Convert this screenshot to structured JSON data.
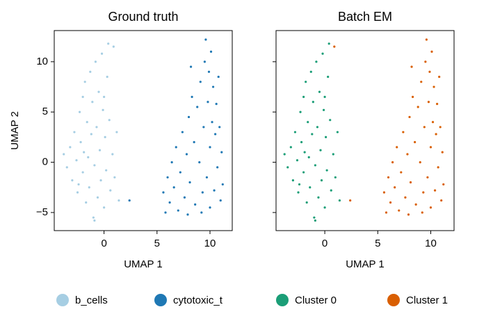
{
  "chart_data": [
    {
      "type": "scatter",
      "title": "Ground truth",
      "xlabel": "UMAP 1",
      "ylabel": "UMAP 2",
      "xlim": [
        -4.7,
        12.1
      ],
      "ylim": [
        -6.8,
        13.1
      ],
      "xticks": [
        0,
        5,
        10
      ],
      "yticks": [
        {
          "value": -5,
          "label": "−5"
        },
        0,
        5,
        10
      ],
      "ytick_labels": true,
      "legend": "bottom",
      "series": [
        {
          "name": "b_cells",
          "color": "#a6cee3",
          "x": [
            -3.8,
            -3.5,
            -3.2,
            -3,
            -2.8,
            -2.6,
            -2.5,
            -2.3,
            -2.2,
            -2,
            -2,
            -1.8,
            -1.7,
            -1.6,
            -1.5,
            -1.4,
            -1.3,
            -1.2,
            -1.1,
            -1,
            -0.9,
            -0.8,
            -0.7,
            -0.6,
            -0.5,
            -0.4,
            -0.3,
            -0.2,
            -0.1,
            0,
            0.1,
            0.2,
            0.3,
            0.4,
            0.5,
            0.6,
            0.8,
            0.9,
            1,
            1.2,
            1.4,
            -2.4,
            -1.9,
            -0.9,
            0
          ],
          "y": [
            0.8,
            -0.5,
            1.5,
            -1.8,
            3,
            0.2,
            -3,
            5,
            2,
            -1,
            6.5,
            8,
            -4,
            4,
            0.5,
            -2.5,
            9,
            2.8,
            6,
            -5.5,
            -0.3,
            10,
            3.5,
            -3.5,
            7,
            1.2,
            -1.8,
            10.8,
            5.2,
            -4.5,
            2.5,
            -0.8,
            8.5,
            11.8,
            4.2,
            -2.8,
            0.8,
            11.5,
            -1.5,
            3,
            -3.8,
            -2.2,
            1,
            -5.8,
            6.5
          ]
        },
        {
          "name": "cytotoxic_t",
          "color": "#1f78b4",
          "x": [
            5.6,
            5.8,
            6,
            6.2,
            6.4,
            6.6,
            6.8,
            7,
            7.2,
            7.4,
            7.6,
            7.8,
            8,
            8.1,
            8.3,
            8.5,
            8.6,
            8.8,
            9,
            9.1,
            9.3,
            9.4,
            9.5,
            9.6,
            9.7,
            9.8,
            9.9,
            10,
            10,
            10.1,
            10.2,
            10.3,
            10.4,
            10.5,
            10.6,
            10.7,
            10.8,
            10.9,
            11,
            11.1,
            11.2,
            8.2,
            7.9,
            9.2,
            2.4
          ],
          "y": [
            -3,
            -5,
            -1.5,
            -4,
            0,
            -2.5,
            1.5,
            -4.8,
            -1,
            3,
            -3.5,
            0.8,
            4.5,
            -2,
            6.5,
            2,
            -4.2,
            5.5,
            0,
            8,
            -3,
            3.5,
            10,
            12.2,
            -1.5,
            6,
            9,
            1.5,
            -4.5,
            11,
            4,
            7.5,
            -2.8,
            2.8,
            5.8,
            -0.5,
            8.5,
            3.5,
            -3.8,
            1,
            -2.2,
            9.5,
            -5.2,
            -5,
            -3.8
          ]
        }
      ]
    },
    {
      "type": "scatter",
      "title": "Batch EM",
      "xlabel": "UMAP 1",
      "xlim": [
        -4.6,
        12.2
      ],
      "ylim": [
        -6.8,
        13.1
      ],
      "xticks": [
        0,
        5,
        10
      ],
      "yticks": [
        -5,
        0,
        5,
        10
      ],
      "ytick_labels": false,
      "legend": "bottom",
      "series": [
        {
          "name": "Cluster 0",
          "color": "#1b9e77",
          "x": [
            -3.8,
            -3.5,
            -3.2,
            -3,
            -2.8,
            -2.6,
            -2.5,
            -2.3,
            -2.2,
            -2,
            -2,
            -1.8,
            -1.7,
            -1.6,
            -1.5,
            -1.4,
            -1.3,
            -1.2,
            -1.1,
            -1,
            -0.9,
            -0.8,
            -0.7,
            -0.6,
            -0.5,
            -0.4,
            -0.3,
            -0.2,
            -0.1,
            0,
            0.1,
            0.2,
            0.3,
            0.4,
            0.5,
            0.6,
            0.8,
            1,
            1.2,
            1.4,
            -2.4,
            -1.9,
            -0.9,
            0
          ],
          "y": [
            0.8,
            -0.5,
            1.5,
            -1.8,
            3,
            0.2,
            -3,
            5,
            2,
            -1,
            6.5,
            8,
            -4,
            4,
            0.5,
            -2.5,
            9,
            2.8,
            6,
            -5.5,
            -0.3,
            10,
            3.5,
            -3.5,
            7,
            1.2,
            -1.8,
            10.8,
            5.2,
            -4.5,
            2.5,
            -0.8,
            8.5,
            11.8,
            4.2,
            -2.8,
            0.8,
            -1.5,
            3,
            -3.8,
            -2.2,
            1,
            -5.8,
            6.5
          ]
        },
        {
          "name": "Cluster 1",
          "color": "#d95f02",
          "x": [
            5.6,
            5.8,
            6,
            6.2,
            6.4,
            6.6,
            6.8,
            7,
            7.2,
            7.4,
            7.6,
            7.8,
            8,
            8.1,
            8.3,
            8.5,
            8.6,
            8.8,
            9,
            9.1,
            9.3,
            9.4,
            9.5,
            9.6,
            9.7,
            9.8,
            9.9,
            10,
            10,
            10.1,
            10.2,
            10.3,
            10.4,
            10.5,
            10.6,
            10.7,
            10.8,
            10.9,
            11,
            11.1,
            11.2,
            8.2,
            7.9,
            9.2,
            2.4,
            0.9
          ],
          "y": [
            -3,
            -5,
            -1.5,
            -4,
            0,
            -2.5,
            1.5,
            -4.8,
            -1,
            3,
            -3.5,
            0.8,
            4.5,
            -2,
            6.5,
            2,
            -4.2,
            5.5,
            0,
            8,
            -3,
            3.5,
            10,
            12.2,
            -1.5,
            6,
            9,
            1.5,
            -4.5,
            11,
            4,
            7.5,
            -2.8,
            2.8,
            5.8,
            -0.5,
            8.5,
            3.5,
            -3.8,
            1,
            -2.2,
            9.5,
            -5.2,
            -5,
            -3.8,
            11.5
          ]
        }
      ]
    }
  ]
}
